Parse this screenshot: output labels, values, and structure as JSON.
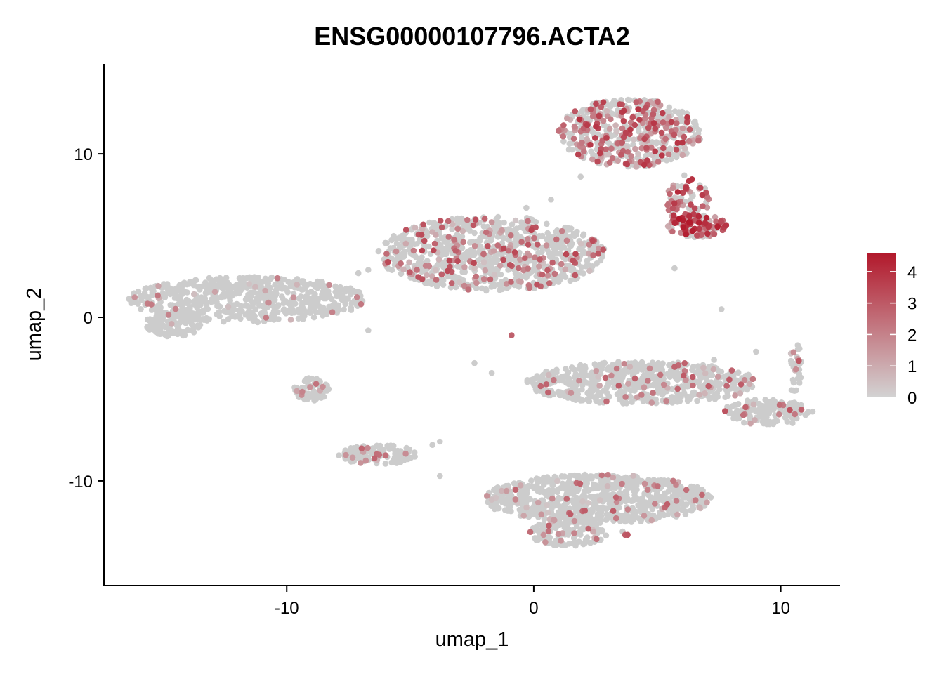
{
  "chart_data": {
    "type": "scatter",
    "title": "ENSG00000107796.ACTA2",
    "xlabel": "umap_1",
    "ylabel": "umap_2",
    "xlim": [
      -17.4,
      12.4
    ],
    "ylim": [
      -16.4,
      15.5
    ],
    "x_ticks": [
      -10,
      0,
      10
    ],
    "y_ticks": [
      -10,
      0,
      10
    ],
    "x_tick_labels": [
      "-10",
      "0",
      "10"
    ],
    "y_tick_labels": [
      "-10",
      "0",
      "10"
    ],
    "grid": false,
    "legend": {
      "placement": "right",
      "type": "colorbar",
      "min": 0,
      "max": 4.6,
      "ticks": [
        0,
        1,
        2,
        3,
        4
      ],
      "tick_labels": [
        "0",
        "1",
        "2",
        "3",
        "4"
      ],
      "low_color": "#d3d3d3",
      "high_color": "#b2182b"
    },
    "point_color_base": "#cccccc",
    "clusters": [
      {
        "name": "",
        "cx": 3.9,
        "cy": 11.3,
        "rx": 2.9,
        "ry": 2.1,
        "n": 520,
        "expr_frac": 0.42,
        "expr_max": 4.0
      },
      {
        "name": "",
        "cx": 6.2,
        "cy": 7.2,
        "rx": 0.9,
        "ry": 1.5,
        "n": 80,
        "expr_frac": 0.6,
        "expr_max": 4.2
      },
      {
        "name": "",
        "cx": 6.6,
        "cy": 5.6,
        "rx": 1.2,
        "ry": 0.7,
        "n": 110,
        "expr_frac": 0.75,
        "expr_max": 4.6
      },
      {
        "name": "",
        "cx": -1.7,
        "cy": 3.9,
        "rx": 4.6,
        "ry": 2.3,
        "n": 850,
        "expr_frac": 0.2,
        "expr_max": 3.5
      },
      {
        "name": "",
        "cx": -11.6,
        "cy": 1.1,
        "rx": 4.8,
        "ry": 1.4,
        "n": 620,
        "expr_frac": 0.03,
        "expr_max": 2.3
      },
      {
        "name": "",
        "cx": -14.6,
        "cy": -0.4,
        "rx": 1.1,
        "ry": 0.8,
        "n": 150,
        "expr_frac": 0.01,
        "expr_max": 1.0
      },
      {
        "name": "",
        "cx": -9.0,
        "cy": -4.4,
        "rx": 0.7,
        "ry": 0.7,
        "n": 70,
        "expr_frac": 0.2,
        "expr_max": 2.6
      },
      {
        "name": "",
        "cx": 4.4,
        "cy": -4.0,
        "rx": 4.7,
        "ry": 1.3,
        "n": 620,
        "expr_frac": 0.07,
        "expr_max": 3.0
      },
      {
        "name": "",
        "cx": 9.5,
        "cy": -5.8,
        "rx": 1.9,
        "ry": 0.8,
        "n": 150,
        "expr_frac": 0.12,
        "expr_max": 3.2
      },
      {
        "name": "",
        "cx": 10.6,
        "cy": -3.2,
        "rx": 0.25,
        "ry": 1.8,
        "n": 30,
        "expr_frac": 0.2,
        "expr_max": 3.3
      },
      {
        "name": "",
        "cx": -6.3,
        "cy": -8.4,
        "rx": 1.6,
        "ry": 0.6,
        "n": 110,
        "expr_frac": 0.18,
        "expr_max": 2.9
      },
      {
        "name": "",
        "cx": 2.6,
        "cy": -11.1,
        "rx": 4.6,
        "ry": 1.5,
        "n": 820,
        "expr_frac": 0.07,
        "expr_max": 3.0
      },
      {
        "name": "",
        "cx": 1.4,
        "cy": -13.2,
        "rx": 1.6,
        "ry": 0.8,
        "n": 140,
        "expr_frac": 0.1,
        "expr_max": 3.0
      }
    ],
    "outliers": [
      {
        "x": 1.9,
        "y": 8.6,
        "value": 0
      },
      {
        "x": 0.7,
        "y": 7.2,
        "value": 0
      },
      {
        "x": -0.3,
        "y": 6.7,
        "value": 0
      },
      {
        "x": 5.7,
        "y": 3.0,
        "value": 0
      },
      {
        "x": -5.4,
        "y": 3.6,
        "value": 0
      },
      {
        "x": -6.7,
        "y": 2.9,
        "value": 0
      },
      {
        "x": -7.1,
        "y": 2.7,
        "value": 0
      },
      {
        "x": -6.7,
        "y": -0.8,
        "value": 0
      },
      {
        "x": -0.9,
        "y": -1.1,
        "value": 2.8
      },
      {
        "x": -2.4,
        "y": -2.8,
        "value": 0
      },
      {
        "x": -1.7,
        "y": -3.4,
        "value": 0
      },
      {
        "x": 9.0,
        "y": -2.1,
        "value": 0
      },
      {
        "x": 7.3,
        "y": -2.6,
        "value": 0
      },
      {
        "x": 7.6,
        "y": 0.5,
        "value": 0
      },
      {
        "x": -4.1,
        "y": -7.8,
        "value": 0
      },
      {
        "x": -3.8,
        "y": -7.6,
        "value": 0
      },
      {
        "x": 3.7,
        "y": -13.3,
        "value": 2.9
      },
      {
        "x": 3.8,
        "y": -13.3,
        "value": 3.1
      },
      {
        "x": 3.6,
        "y": -13.1,
        "value": 0
      },
      {
        "x": -3.8,
        "y": -9.7,
        "value": 0
      }
    ]
  }
}
